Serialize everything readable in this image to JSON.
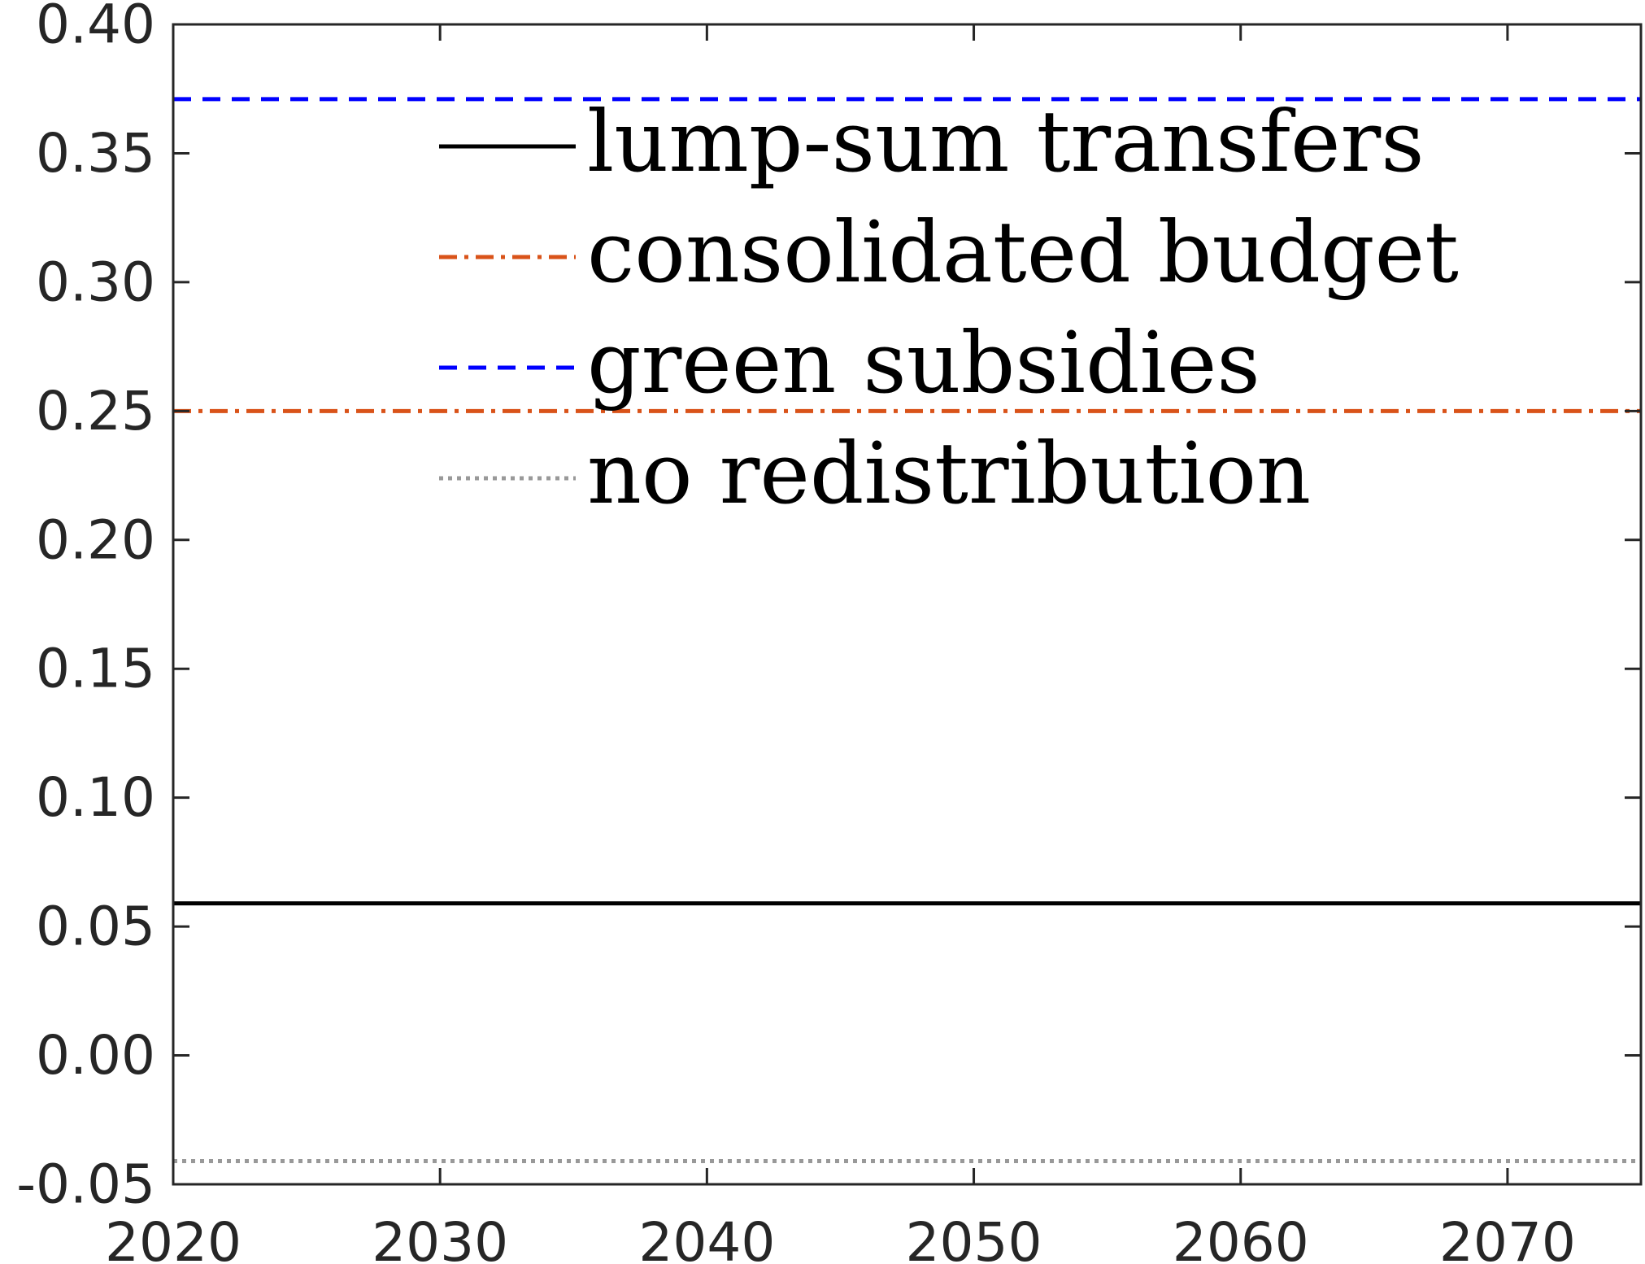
{
  "chart_data": {
    "type": "line",
    "x_ticks": [
      2020,
      2030,
      2040,
      2050,
      2060,
      2070
    ],
    "y_ticks": [
      "-0.05",
      "0.00",
      "0.05",
      "0.10",
      "0.15",
      "0.20",
      "0.25",
      "0.30",
      "0.35",
      "0.40"
    ],
    "xlim": [
      2020,
      2075
    ],
    "ylim": [
      -0.05,
      0.4
    ],
    "grid": false,
    "legend_position": "top-center",
    "series": [
      {
        "name": "lump-sum transfers",
        "x": [
          2020,
          2075
        ],
        "y": [
          0.059,
          0.059
        ],
        "color": "#000000",
        "style": "solid"
      },
      {
        "name": "consolidated budget",
        "x": [
          2020,
          2075
        ],
        "y": [
          0.25,
          0.25
        ],
        "color": "#D95319",
        "style": "dashdot"
      },
      {
        "name": "green subsidies",
        "x": [
          2020,
          2075
        ],
        "y": [
          0.371,
          0.371
        ],
        "color": "#0000FF",
        "style": "dashed"
      },
      {
        "name": "no redistribution",
        "x": [
          2020,
          2075
        ],
        "y": [
          -0.041,
          -0.041
        ],
        "color": "#999999",
        "style": "dotted"
      }
    ]
  }
}
